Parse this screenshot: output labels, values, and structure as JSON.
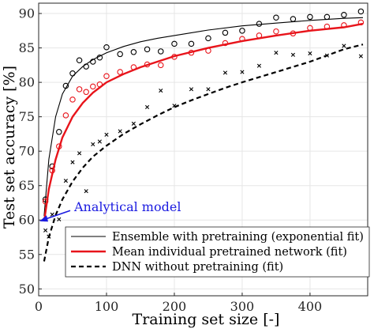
{
  "chart_data": {
    "type": "line",
    "xlabel": "Training set size [-]",
    "ylabel": "Test set accuracy [%]",
    "xlim": [
      0,
      485
    ],
    "ylim": [
      49,
      91.5
    ],
    "xticks": [
      0,
      100,
      200,
      300,
      400
    ],
    "yticks": [
      50,
      55,
      60,
      65,
      70,
      75,
      80,
      85,
      90
    ],
    "grid": true,
    "legend_position": "bottom-right",
    "colors": {
      "ensemble": "#000000",
      "mean": "#e8141b",
      "dnn": "#000000",
      "annotation": "#1a1ae0",
      "grid": "#e6e6e6"
    },
    "series": [
      {
        "name": "Ensemble with pretraining (exponential fit)",
        "style": "solid-thin",
        "marker": "circle",
        "points": {
          "x": [
            10,
            20,
            30,
            40,
            50,
            60,
            70,
            80,
            90,
            100,
            120,
            140,
            160,
            180,
            200,
            225,
            250,
            275,
            300,
            325,
            350,
            375,
            400,
            425,
            450,
            475
          ],
          "y": [
            63.0,
            67.8,
            72.8,
            79.5,
            81.3,
            83.2,
            82.3,
            83.0,
            83.6,
            85.1,
            84.1,
            84.4,
            84.8,
            84.5,
            85.6,
            85.6,
            86.4,
            87.2,
            87.5,
            88.5,
            89.4,
            89.2,
            89.5,
            89.5,
            89.8,
            90.3
          ]
        },
        "fit": {
          "x": [
            8,
            15,
            25,
            35,
            50,
            65,
            80,
            100,
            125,
            150,
            175,
            200,
            250,
            300,
            350,
            400,
            450,
            478
          ],
          "y": [
            60.6,
            68.8,
            75.0,
            78.3,
            80.9,
            82.3,
            83.3,
            84.3,
            85.2,
            85.9,
            86.4,
            86.8,
            87.6,
            88.2,
            88.6,
            89.0,
            89.3,
            89.4
          ]
        }
      },
      {
        "name": "Mean individual pretrained network (fit)",
        "style": "solid-thick",
        "marker": "circle",
        "points": {
          "x": [
            10,
            20,
            30,
            40,
            50,
            60,
            70,
            80,
            90,
            100,
            120,
            140,
            160,
            180,
            200,
            225,
            250,
            275,
            300,
            325,
            350,
            375,
            400,
            425,
            450,
            475
          ],
          "y": [
            62.7,
            67.2,
            70.7,
            75.2,
            77.5,
            79.0,
            78.6,
            79.4,
            79.7,
            80.9,
            81.5,
            82.2,
            82.6,
            82.5,
            83.7,
            84.3,
            84.6,
            85.7,
            86.3,
            86.8,
            87.4,
            87.1,
            87.9,
            88.1,
            88.3,
            88.7
          ]
        },
        "fit": {
          "x": [
            8,
            15,
            25,
            35,
            50,
            65,
            80,
            100,
            125,
            150,
            175,
            200,
            250,
            300,
            350,
            400,
            450,
            478
          ],
          "y": [
            59.8,
            64.5,
            68.8,
            72.0,
            75.0,
            77.0,
            78.5,
            80.0,
            81.2,
            82.2,
            83.0,
            83.8,
            85.0,
            86.0,
            86.8,
            87.5,
            88.0,
            88.5
          ]
        }
      },
      {
        "name": "DNN without pretraining (fit)",
        "style": "dashed-thick",
        "marker": "x",
        "points": {
          "x": [
            10,
            15,
            20,
            30,
            40,
            50,
            60,
            70,
            80,
            90,
            100,
            120,
            140,
            160,
            180,
            200,
            225,
            250,
            275,
            300,
            325,
            350,
            375,
            400,
            425,
            450,
            475
          ],
          "y": [
            58.5,
            57.6,
            60.8,
            60.1,
            65.7,
            68.4,
            69.7,
            64.2,
            71.0,
            71.4,
            72.4,
            72.9,
            74.0,
            76.4,
            78.8,
            76.6,
            79.0,
            79.0,
            81.4,
            81.5,
            82.4,
            84.3,
            84.0,
            84.2,
            83.9,
            85.3,
            83.8
          ]
        },
        "fit": {
          "x": [
            8,
            15,
            25,
            35,
            50,
            65,
            80,
            100,
            125,
            150,
            175,
            200,
            225,
            250,
            275,
            300,
            350,
            400,
            450,
            478
          ],
          "y": [
            54.0,
            57.5,
            60.7,
            63.0,
            65.6,
            67.6,
            69.2,
            70.8,
            72.5,
            73.9,
            75.2,
            76.4,
            77.4,
            78.3,
            79.2,
            80.0,
            81.5,
            83.0,
            84.8,
            85.5
          ]
        }
      }
    ],
    "annotation": {
      "text": "Analytical model",
      "x": 0,
      "y": 60
    }
  }
}
